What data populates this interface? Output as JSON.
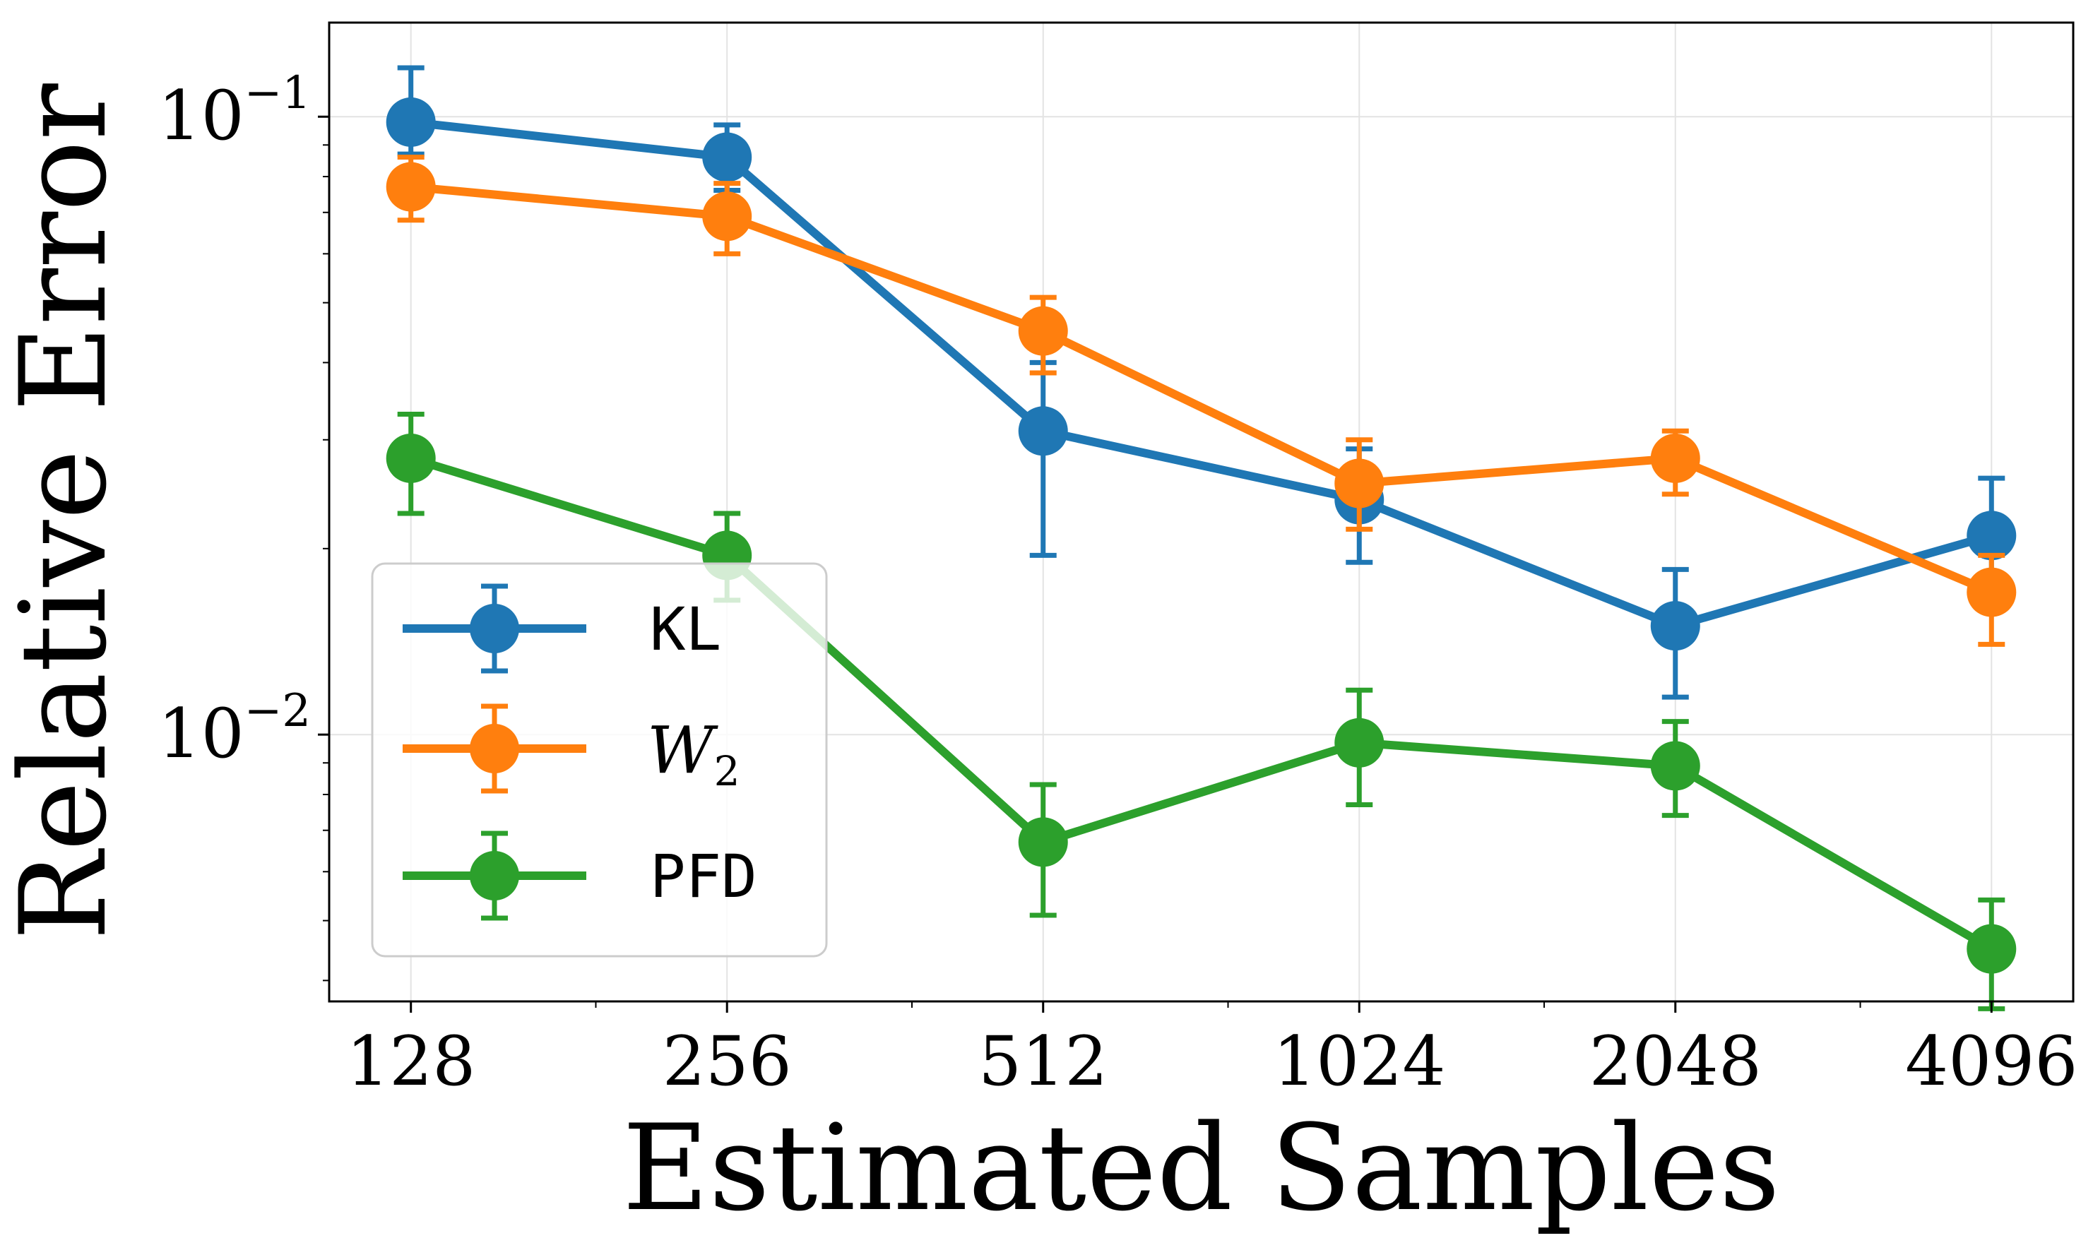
{
  "chart_data": {
    "type": "line",
    "xlabel": "Estimated Samples",
    "ylabel": "Relative Error",
    "x_scale": "log2",
    "y_scale": "log10",
    "x": [
      128,
      256,
      512,
      1024,
      2048,
      4096
    ],
    "x_tick_labels": [
      "128",
      "256",
      "512",
      "1024",
      "2048",
      "4096"
    ],
    "y_tick_labels": [
      {
        "value": 0.1,
        "base": "10",
        "exponent": "−1"
      },
      {
        "value": 0.01,
        "base": "10",
        "exponent": "−2"
      }
    ],
    "xlim": [
      107,
      4900
    ],
    "ylim": [
      0.0037,
      0.142
    ],
    "grid": true,
    "legend_position": "lower-left",
    "series": [
      {
        "name": "KL",
        "color": "#1f77b4",
        "values": [
          0.098,
          0.086,
          0.031,
          0.024,
          0.015,
          0.021
        ],
        "error_low": [
          0.087,
          0.076,
          0.0195,
          0.019,
          0.0115,
          0.016
        ],
        "error_high": [
          0.12,
          0.097,
          0.04,
          0.029,
          0.0185,
          0.026
        ]
      },
      {
        "name": "W",
        "name_subscript": "2",
        "color": "#ff7f0e",
        "values": [
          0.077,
          0.069,
          0.045,
          0.0255,
          0.028,
          0.017
        ],
        "error_low": [
          0.068,
          0.06,
          0.0385,
          0.0215,
          0.0245,
          0.014
        ],
        "error_high": [
          0.086,
          0.078,
          0.051,
          0.03,
          0.031,
          0.0195
        ]
      },
      {
        "name": "PFD",
        "color": "#2ca02c",
        "values": [
          0.028,
          0.0195,
          0.0067,
          0.0097,
          0.0089,
          0.0045
        ],
        "error_low": [
          0.0228,
          0.0165,
          0.0051,
          0.0077,
          0.0074,
          0.0036
        ],
        "error_high": [
          0.033,
          0.0228,
          0.0083,
          0.0118,
          0.0105,
          0.0054
        ]
      }
    ]
  }
}
